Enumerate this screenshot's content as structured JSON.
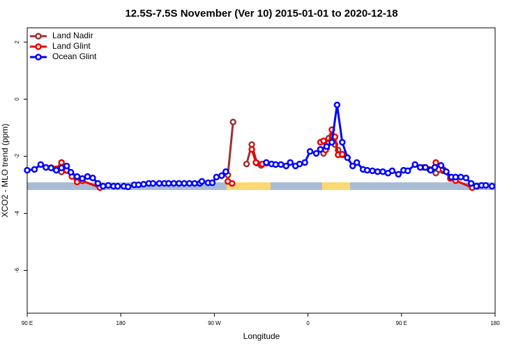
{
  "chart_data": {
    "type": "line",
    "title": "12.5S-7.5S November (Ver 10)   2015-01-01 to 2020-12-18",
    "x_label": "Longitude",
    "y_label": "XCO2 - MLO trend (ppm)",
    "xlim": [
      90,
      540
    ],
    "ylim": [
      -7.5,
      2.5
    ],
    "xticks": [
      {
        "value": 90,
        "label": "90 E"
      },
      180,
      {
        "value": 270,
        "label": "90 W"
      },
      {
        "value": 360,
        "label": "0"
      },
      {
        "value": 450,
        "label": "90 E"
      },
      {
        "value": 540,
        "label": "180"
      }
    ],
    "yticks": [
      2,
      0,
      -2,
      -4,
      -6
    ],
    "legend": "topleft",
    "series": [
      {
        "name": "Land Nadir",
        "color": "#993333",
        "x": [
          113,
          117,
          123,
          128,
          200,
          283,
          288,
          295,
          301,
          306,
          311,
          315,
          320,
          350,
          372,
          375,
          378,
          380,
          383,
          386,
          389,
          393,
          430,
          471,
          477,
          483,
          490
        ],
        "values": [
          -2.4,
          -2.45,
          -2.55,
          -2.5,
          null,
          -2.66,
          -0.8,
          null,
          -2.27,
          -1.59,
          -2.24,
          -2.32,
          -2.24,
          null,
          -1.76,
          -1.9,
          -1.71,
          -1.37,
          -1.27,
          -1.59,
          -1.78,
          -1.95,
          null,
          -2.39,
          -2.46,
          -2.59,
          -2.51
        ]
      },
      {
        "name": "Land Glint",
        "color": "#ee0000",
        "x": [
          113,
          118,
          123,
          128,
          133,
          138,
          143,
          160,
          220,
          283,
          287,
          295,
          306,
          310,
          316,
          320,
          350,
          372,
          375,
          377,
          380,
          383,
          386,
          389,
          393,
          430,
          483,
          490,
          497,
          502,
          518,
          523
        ],
        "values": [
          -2.41,
          -2.44,
          -2.22,
          -2.49,
          -2.71,
          -2.9,
          -2.86,
          -3.1,
          null,
          -2.88,
          -2.95,
          null,
          -1.76,
          -2.22,
          -2.27,
          -2.24,
          null,
          -1.51,
          -1.46,
          -1.78,
          -1.54,
          -1.07,
          -1.32,
          -1.95,
          -1.93,
          null,
          -2.22,
          -2.46,
          -2.78,
          -2.85,
          -3.1,
          -3.05
        ]
      },
      {
        "name": "Ocean Glint",
        "color": "#0000ff",
        "x": [
          90,
          97,
          103,
          108,
          113,
          118,
          123,
          128,
          132,
          138,
          143,
          148,
          153,
          158,
          163,
          168,
          173,
          177,
          183,
          187,
          193,
          197,
          202,
          207,
          211,
          217,
          222,
          226,
          231,
          236,
          241,
          246,
          251,
          256,
          258,
          264,
          268,
          272,
          277,
          281,
          300,
          320,
          325,
          329,
          334,
          339,
          343,
          348,
          352,
          357,
          362,
          368,
          372,
          378,
          383,
          388,
          393,
          398,
          403,
          407,
          413,
          417,
          422,
          427,
          432,
          437,
          441,
          447,
          452,
          456,
          463,
          468,
          473,
          478,
          482,
          488,
          493,
          498,
          502,
          507,
          512,
          517,
          522,
          527,
          531,
          537
        ],
        "values": [
          -2.49,
          -2.46,
          -2.29,
          -2.39,
          -2.41,
          -2.49,
          -2.41,
          -2.34,
          -2.56,
          -2.71,
          -2.78,
          -2.71,
          -2.76,
          -2.95,
          -3.05,
          -3.02,
          -3.05,
          -3.05,
          -3.05,
          -3.07,
          -3.0,
          -3.0,
          -2.98,
          -2.95,
          -2.95,
          -2.95,
          -2.95,
          -2.95,
          -2.95,
          -2.95,
          -2.95,
          -2.95,
          -2.95,
          -2.95,
          -2.88,
          -2.93,
          -2.93,
          -2.73,
          -2.68,
          -2.54,
          null,
          -2.22,
          -2.27,
          -2.29,
          -2.29,
          -2.34,
          -2.22,
          -2.34,
          -2.27,
          -2.22,
          -1.83,
          -1.9,
          -1.76,
          -1.66,
          -1.51,
          -0.2,
          -1.51,
          -2.05,
          -2.34,
          -2.22,
          -2.46,
          -2.49,
          -2.51,
          -2.54,
          -2.54,
          -2.59,
          -2.51,
          -2.63,
          -2.49,
          -2.51,
          -2.29,
          -2.39,
          -2.39,
          -2.49,
          -2.39,
          -2.32,
          -2.54,
          -2.73,
          -2.73,
          -2.73,
          -2.76,
          -2.95,
          -3.05,
          -3.02,
          -3.02,
          -3.05
        ]
      }
    ]
  }
}
